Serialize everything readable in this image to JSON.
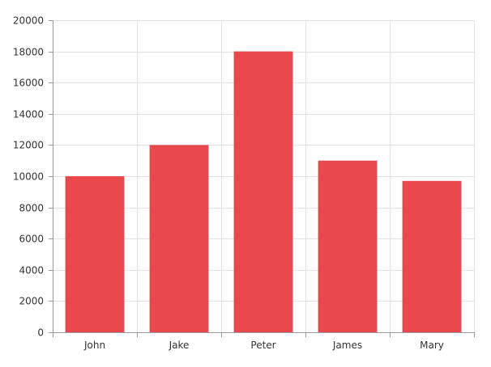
{
  "chart_data": {
    "type": "bar",
    "title": "",
    "xlabel": "",
    "ylabel": "",
    "categories": [
      "John",
      "Jake",
      "Peter",
      "James",
      "Mary"
    ],
    "values": [
      10000,
      12000,
      18000,
      11000,
      9700
    ],
    "ylim": [
      0,
      20000
    ],
    "yticks": [
      "0",
      "2000",
      "4000",
      "6000",
      "8000",
      "10000",
      "12000",
      "14000",
      "16000",
      "18000",
      "20000"
    ],
    "grid": true,
    "legend": "none",
    "colors": {
      "bar": "#e8474c",
      "grid": "#e2e2e2",
      "axis": "#9a9a9a",
      "label": "#333333"
    }
  }
}
